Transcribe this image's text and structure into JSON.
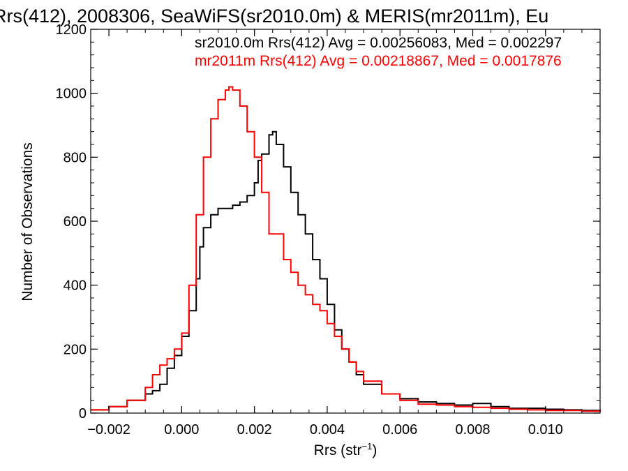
{
  "title": "Rrs(412), 2008306, SeaWiFS(sr2010.0m) & MERIS(mr2011m), Eu",
  "stats": [
    {
      "text": "sr2010.0m Rrs(412) Avg = 0.00256083, Med = 0.002297",
      "color": "#000000"
    },
    {
      "text": "mr2011m Rrs(412) Avg = 0.00218867, Med = 0.0017876",
      "color": "#ff0000"
    }
  ],
  "axes": {
    "xlabel_main": "Rrs (str",
    "xlabel_sup": "−1",
    "xlabel_close": ")",
    "ylabel": "Number of Observations"
  },
  "chart_data": {
    "type": "line",
    "step": true,
    "title": "Rrs(412), 2008306, SeaWiFS(sr2010.0m) & MERIS(mr2011m), Eu",
    "xlabel": "Rrs (str−1)",
    "ylabel": "Number of Observations",
    "xlim": [
      -0.0025,
      0.0115
    ],
    "ylim": [
      0,
      1200
    ],
    "xticks": [
      -0.002,
      0.0,
      0.002,
      0.004,
      0.006,
      0.008,
      0.01
    ],
    "xtick_labels": [
      "−0.002",
      "0.000",
      "0.002",
      "0.004",
      "0.006",
      "0.008",
      "0.010"
    ],
    "yticks": [
      0,
      200,
      400,
      600,
      800,
      1000,
      1200
    ],
    "ytick_labels": [
      "0",
      "200",
      "400",
      "600",
      "800",
      "1000",
      "1200"
    ],
    "series": [
      {
        "color": "#000000",
        "x": [
          -0.0025,
          -0.002,
          -0.0015,
          -0.001,
          -0.0008,
          -0.0006,
          -0.0004,
          -0.0002,
          0.0,
          0.0002,
          0.0004,
          0.0005,
          0.0006,
          0.0008,
          0.001,
          0.0012,
          0.0014,
          0.0016,
          0.0018,
          0.002,
          0.0021,
          0.0022,
          0.0024,
          0.0025,
          0.0026,
          0.0028,
          0.003,
          0.0032,
          0.0034,
          0.0036,
          0.0038,
          0.004,
          0.0042,
          0.0044,
          0.0046,
          0.0048,
          0.005,
          0.0055,
          0.006,
          0.0065,
          0.007,
          0.0075,
          0.008,
          0.0085,
          0.009,
          0.0095,
          0.01,
          0.0105,
          0.011,
          0.0115
        ],
        "y": [
          10,
          20,
          40,
          60,
          70,
          90,
          140,
          180,
          240,
          320,
          420,
          520,
          580,
          620,
          640,
          640,
          650,
          660,
          680,
          720,
          790,
          810,
          870,
          880,
          840,
          770,
          690,
          620,
          560,
          480,
          420,
          340,
          260,
          200,
          160,
          120,
          90,
          60,
          45,
          35,
          30,
          25,
          30,
          20,
          15,
          15,
          12,
          10,
          8,
          5
        ]
      },
      {
        "color": "#ff0000",
        "x": [
          -0.0025,
          -0.002,
          -0.0015,
          -0.001,
          -0.0008,
          -0.0006,
          -0.0004,
          -0.0002,
          0.0,
          0.0002,
          0.0004,
          0.0006,
          0.0008,
          0.001,
          0.0012,
          0.0013,
          0.0014,
          0.0016,
          0.0018,
          0.002,
          0.0022,
          0.0024,
          0.0026,
          0.0028,
          0.003,
          0.0032,
          0.0034,
          0.0036,
          0.0038,
          0.004,
          0.0042,
          0.0044,
          0.0046,
          0.0048,
          0.005,
          0.0055,
          0.006,
          0.0065,
          0.007,
          0.0075,
          0.008,
          0.0085,
          0.009,
          0.0095,
          0.01,
          0.0105,
          0.011,
          0.0115
        ],
        "y": [
          10,
          20,
          40,
          80,
          120,
          150,
          170,
          200,
          250,
          400,
          620,
          800,
          920,
          980,
          1010,
          1020,
          1010,
          960,
          880,
          800,
          690,
          560,
          560,
          480,
          440,
          400,
          370,
          340,
          320,
          280,
          240,
          200,
          160,
          130,
          100,
          60,
          40,
          28,
          25,
          20,
          18,
          15,
          12,
          10,
          8,
          8,
          6,
          5
        ]
      }
    ]
  }
}
